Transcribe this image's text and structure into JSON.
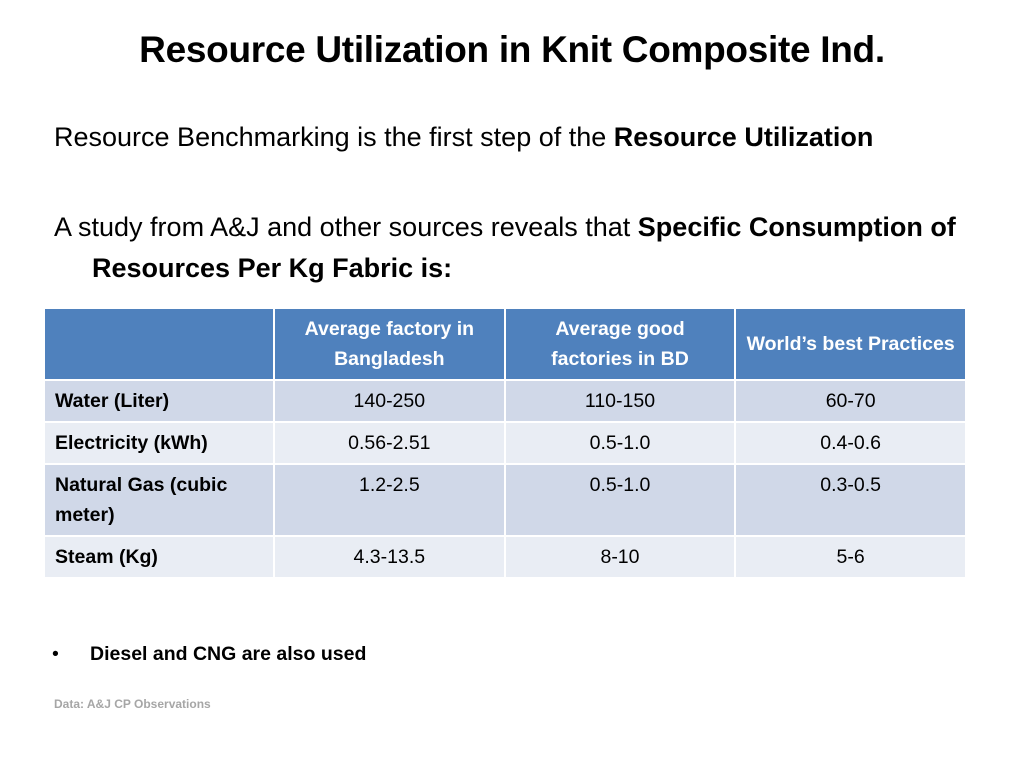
{
  "slide": {
    "title": "Resource Utilization in Knit Composite Ind."
  },
  "paragraphs": [
    {
      "plain": "Resource Benchmarking is the first step of the ",
      "bold": "Resource Utilization"
    },
    {
      "plain": "A study from A&J and other sources reveals that ",
      "bold": "Specific Consumption of Resources Per Kg Fabric is:"
    }
  ],
  "table": {
    "headers": [
      "",
      "Average factory in Bangladesh",
      "Average good factories in BD",
      "World’s best Practices"
    ],
    "rows": [
      {
        "label": "Water (Liter)",
        "values": [
          "140-250",
          "110-150",
          "60-70"
        ]
      },
      {
        "label": "Electricity (kWh)",
        "values": [
          "0.56-2.51",
          "0.5-1.0",
          "0.4-0.6"
        ]
      },
      {
        "label": "Natural Gas (cubic meter)",
        "values": [
          "1.2-2.5",
          "0.5-1.0",
          "0.3-0.5"
        ]
      },
      {
        "label": "Steam (Kg)",
        "values": [
          "4.3-13.5",
          "8-10",
          "5-6"
        ]
      }
    ],
    "colors": {
      "header_bg": "#4f81bd",
      "row_odd_bg": "#d0d8e8",
      "row_even_bg": "#e9edf4"
    }
  },
  "bullet": {
    "symbol": "•",
    "text": "Diesel and CNG are also used"
  },
  "source_note": "Data: A&J CP Observations"
}
